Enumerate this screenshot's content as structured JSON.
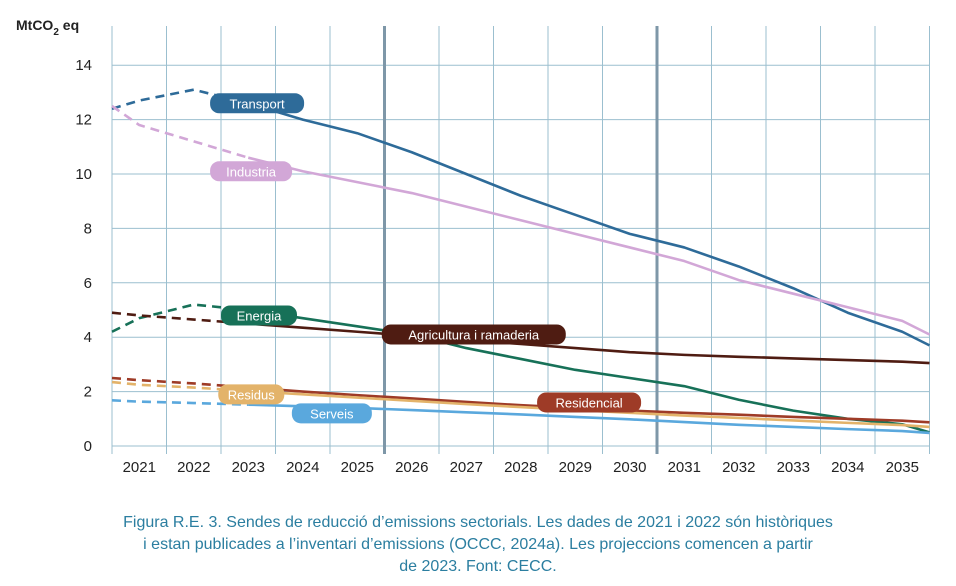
{
  "chart_data": {
    "type": "line",
    "ylabel": "MtCO",
    "ylabel_sub": "2",
    "ylabel_suffix": " eq",
    "ylim": [
      0,
      15
    ],
    "yticks": [
      0,
      2,
      4,
      6,
      8,
      10,
      12,
      14
    ],
    "x": [
      2020.5,
      2021,
      2022,
      2023,
      2024,
      2025,
      2026,
      2027,
      2028,
      2029,
      2030,
      2031,
      2032,
      2033,
      2034,
      2035,
      2035.5
    ],
    "xticks": [
      "2021",
      "2022",
      "2023",
      "2024",
      "2025",
      "2026",
      "2027",
      "2028",
      "2029",
      "2030",
      "2031",
      "2032",
      "2033",
      "2034",
      "2035"
    ],
    "grid": true,
    "projection_markers": [
      2025.5,
      2030.5
    ],
    "series": [
      {
        "name": "Transport",
        "color": "#2e6b99",
        "values": [
          12.4,
          12.7,
          13.1,
          12.6,
          12.0,
          11.5,
          10.8,
          10.0,
          9.2,
          8.5,
          7.8,
          7.3,
          6.6,
          5.8,
          4.9,
          4.2,
          3.7
        ]
      },
      {
        "name": "Industria",
        "color": "#d2a7d7",
        "values": [
          12.5,
          11.8,
          11.2,
          10.6,
          10.1,
          9.7,
          9.3,
          8.8,
          8.3,
          7.8,
          7.3,
          6.8,
          6.1,
          5.6,
          5.1,
          4.6,
          4.1
        ]
      },
      {
        "name": "Energia",
        "color": "#177158",
        "values": [
          4.2,
          4.7,
          5.2,
          5.0,
          4.7,
          4.4,
          4.1,
          3.6,
          3.2,
          2.8,
          2.5,
          2.2,
          1.7,
          1.3,
          1.0,
          0.8,
          0.5
        ]
      },
      {
        "name": "Agricultura i ramaderia",
        "color": "#4f1c12",
        "values": [
          4.9,
          4.8,
          4.65,
          4.5,
          4.35,
          4.2,
          4.05,
          3.9,
          3.75,
          3.6,
          3.45,
          3.35,
          3.28,
          3.22,
          3.16,
          3.1,
          3.05
        ]
      },
      {
        "name": "Residencial",
        "color": "#9e3b27",
        "values": [
          2.5,
          2.42,
          2.3,
          2.15,
          2.0,
          1.87,
          1.75,
          1.62,
          1.5,
          1.4,
          1.3,
          1.22,
          1.15,
          1.07,
          1.0,
          0.93,
          0.87
        ]
      },
      {
        "name": "Residus",
        "color": "#e3b36a",
        "values": [
          2.35,
          2.25,
          2.15,
          2.02,
          1.9,
          1.78,
          1.66,
          1.54,
          1.43,
          1.32,
          1.22,
          1.12,
          1.03,
          0.94,
          0.85,
          0.77,
          0.7
        ]
      },
      {
        "name": "Serveis",
        "color": "#5aa8dd",
        "values": [
          1.68,
          1.63,
          1.58,
          1.52,
          1.46,
          1.4,
          1.32,
          1.24,
          1.16,
          1.07,
          0.98,
          0.88,
          0.78,
          0.7,
          0.62,
          0.55,
          0.48
        ]
      }
    ]
  },
  "caption": [
    "Figura R.E. 3. Sendes de reducció d’emissions sectorials. Les dades de 2021 i 2022 són històriques",
    "i estan publicades a l’inventari d’emissions (OCCC, 2024a). Les projeccions comencen a partir",
    "de 2023. Font: CECC."
  ]
}
